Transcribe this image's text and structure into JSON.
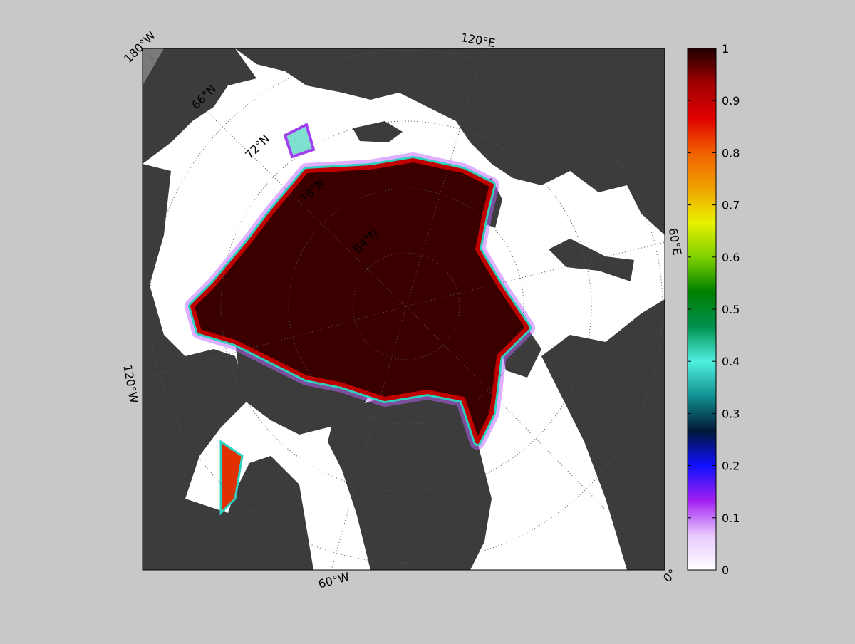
{
  "map": {
    "longitude_labels": [
      "180°W",
      "120°E",
      "60°E",
      "0°",
      "60°W",
      "120°W"
    ],
    "latitude_labels": [
      "66°N",
      "72°N",
      "78°N",
      "84°N"
    ]
  },
  "colorbar": {
    "lim": [
      0,
      1
    ],
    "ticks": [
      0,
      0.1,
      0.2,
      0.3,
      0.4,
      0.5,
      0.6,
      0.7,
      0.8,
      0.9,
      1
    ],
    "colors": [
      "#ffffff",
      "#e8c8ff",
      "#a020f0",
      "#1010ff",
      "#001838",
      "#109090",
      "#50f0e0",
      "#009050",
      "#008000",
      "#80d000",
      "#e8f000",
      "#f0a000",
      "#f06000",
      "#e00000",
      "#a00000",
      "#200000"
    ]
  }
}
